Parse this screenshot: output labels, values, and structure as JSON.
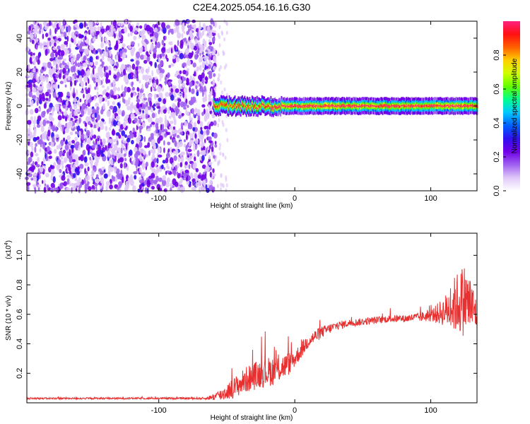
{
  "title": "C2E4.2025.054.16.16.G30",
  "chart_data": [
    {
      "type": "heatmap",
      "xlabel": "Height of straight line (km)",
      "ylabel": "Frequency (Hz)",
      "xlim": [
        -197,
        134
      ],
      "ylim": [
        -50,
        50
      ],
      "x_ticks": [
        -100,
        0,
        100
      ],
      "y_ticks": [
        -40,
        -20,
        0,
        20,
        40
      ],
      "noise_region_x": [
        -197,
        -58
      ],
      "tone_frequency_hz": 0,
      "tone_start_x": -60,
      "colorbar": {
        "label": "Normalized spectral amplitude",
        "range": [
          0.0,
          1.0
        ],
        "ticks": [
          0.0,
          0.2,
          0.4,
          0.6,
          0.8
        ],
        "colormap": [
          "#ffffff",
          "#e0c8f8",
          "#a060f0",
          "#7000e8",
          "#3010f0",
          "#0060ff",
          "#00c8ff",
          "#00ff90",
          "#60ff00",
          "#d0ff00",
          "#ffd000",
          "#ff6000",
          "#ff1010",
          "#ff2080"
        ]
      }
    },
    {
      "type": "line",
      "xlabel": "Height of straight line (km)",
      "ylabel": "SNR (10 * v/v)",
      "scale_note": "(x10",
      "scale_exp": "4",
      "scale_close": ")",
      "xlim": [
        -197,
        134
      ],
      "ylim": [
        0.0,
        1.15
      ],
      "x_ticks": [
        -100,
        0,
        100
      ],
      "y_ticks": [
        0.2,
        0.4,
        0.6,
        0.8,
        1.0
      ],
      "color": "#e83030",
      "series": [
        {
          "x": [
            -197,
            -180,
            -160,
            -140,
            -120,
            -100,
            -80,
            -65,
            -55,
            -45,
            -35,
            -25,
            -15,
            -5,
            0,
            10,
            20,
            30,
            40,
            50,
            60,
            70,
            80,
            90,
            100,
            110,
            115,
            120,
            125,
            130,
            134
          ],
          "y": [
            0.03,
            0.03,
            0.03,
            0.03,
            0.03,
            0.03,
            0.03,
            0.03,
            0.05,
            0.1,
            0.16,
            0.2,
            0.22,
            0.26,
            0.3,
            0.42,
            0.48,
            0.52,
            0.54,
            0.55,
            0.56,
            0.57,
            0.57,
            0.58,
            0.59,
            0.62,
            0.65,
            0.68,
            0.7,
            0.65,
            0.6
          ],
          "noise": [
            0.006,
            0.006,
            0.006,
            0.006,
            0.006,
            0.006,
            0.006,
            0.008,
            0.04,
            0.07,
            0.09,
            0.1,
            0.1,
            0.08,
            0.06,
            0.05,
            0.04,
            0.03,
            0.025,
            0.025,
            0.025,
            0.025,
            0.025,
            0.03,
            0.04,
            0.1,
            0.16,
            0.22,
            0.25,
            0.18,
            0.12
          ]
        }
      ]
    }
  ]
}
